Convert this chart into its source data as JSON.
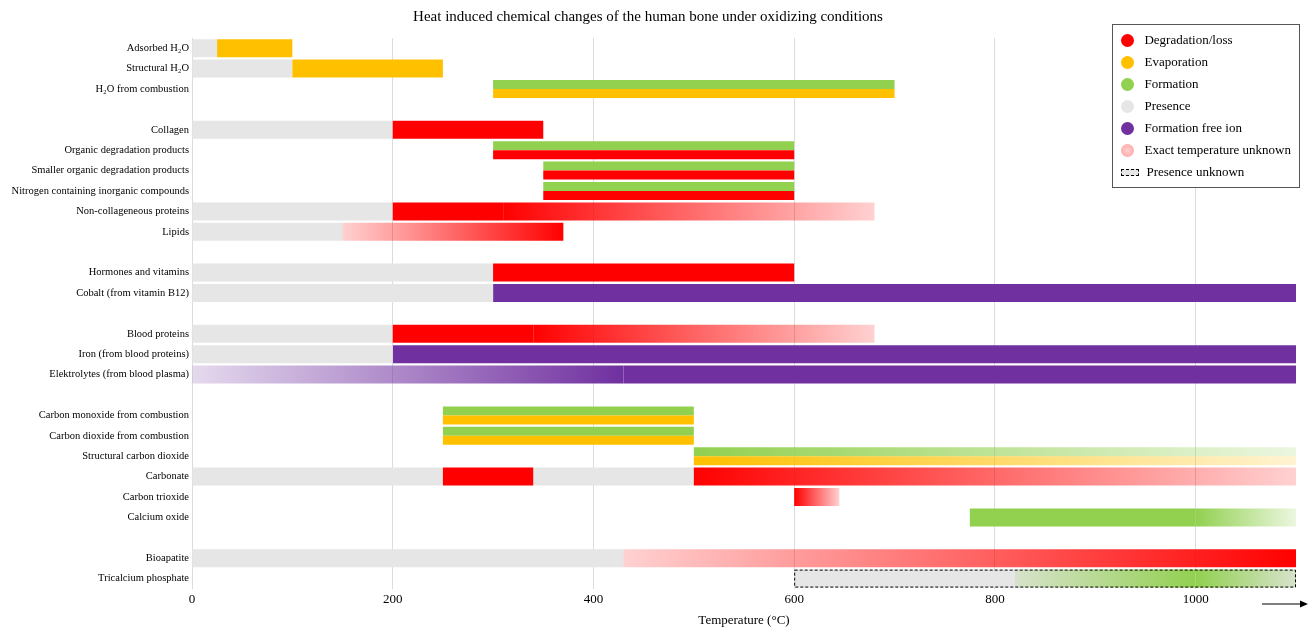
{
  "chart_data": {
    "type": "bar",
    "orientation": "horizontal",
    "title": "Heat induced chemical changes of the human bone under oxidizing conditions",
    "xlabel": "Temperature (°C)",
    "categories": [
      "Adsorbed H₂O",
      "Structural H₂O",
      "H₂O from combustion",
      null,
      "Collagen",
      "Organic degradation products",
      "Smaller organic degradation products",
      "Nitrogen containing inorganic compounds",
      "Non-collageneous proteins",
      "Lipids",
      null,
      "Hormones and vitamins",
      "Cobalt (from vitamin B12)",
      null,
      "Blood proteins",
      "Iron (from blood proteins)",
      "Elektrolytes (from blood plasma)",
      null,
      "Carbon monoxide from combustion",
      "Carbon dioxide from combustion",
      "Structural carbon dioxide",
      "Carbonate",
      "Carbon trioxide",
      "Calcium oxide",
      null,
      "Bioapatite",
      "Tricalcium phosphate"
    ],
    "xlim": [
      0,
      1100
    ],
    "xticks": [
      0,
      200,
      400,
      600,
      800,
      1000
    ],
    "grid": "x",
    "legend": "top right",
    "series": [
      {
        "name": "Degradation/loss",
        "color": "#ff0000",
        "values": [
          null,
          null,
          null,
          null,
          150,
          300,
          250,
          250,
          110,
          null,
          null,
          300,
          null,
          null,
          140,
          null,
          null,
          null,
          null,
          null,
          null,
          90,
          null,
          null,
          null,
          null,
          null
        ],
        "base": [
          null,
          null,
          null,
          null,
          200,
          300,
          350,
          350,
          200,
          null,
          null,
          300,
          null,
          null,
          200,
          null,
          null,
          null,
          null,
          null,
          null,
          250,
          null,
          null,
          null,
          null,
          null
        ]
      },
      {
        "name": "Evaporation",
        "color": "#ffc000",
        "values": [
          75,
          150,
          400,
          null,
          null,
          null,
          null,
          null,
          null,
          null,
          null,
          null,
          null,
          null,
          null,
          null,
          null,
          null,
          250,
          250,
          null,
          null,
          null,
          null,
          null,
          null,
          null
        ],
        "base": [
          25,
          100,
          300,
          null,
          null,
          null,
          null,
          null,
          null,
          null,
          null,
          null,
          null,
          null,
          null,
          null,
          null,
          null,
          250,
          250,
          null,
          null,
          null,
          null,
          null,
          null,
          null
        ]
      },
      {
        "name": "Formation",
        "color": "#92d050",
        "values": [
          null,
          null,
          400,
          null,
          null,
          300,
          250,
          250,
          null,
          null,
          null,
          null,
          null,
          null,
          null,
          null,
          null,
          null,
          250,
          250,
          null,
          null,
          null,
          225,
          null,
          null,
          null
        ],
        "base": [
          null,
          null,
          300,
          null,
          null,
          300,
          350,
          350,
          null,
          null,
          null,
          null,
          null,
          null,
          null,
          null,
          null,
          null,
          250,
          250,
          null,
          null,
          null,
          775,
          null,
          null,
          null
        ]
      },
      {
        "name": "Presence",
        "color": "#e6e6e6",
        "values": [
          25,
          100,
          null,
          null,
          200,
          null,
          null,
          null,
          200,
          150,
          null,
          300,
          300,
          null,
          200,
          200,
          null,
          null,
          null,
          null,
          null,
          250,
          null,
          null,
          null,
          430,
          null
        ],
        "base": [
          0,
          0,
          null,
          null,
          0,
          null,
          null,
          null,
          0,
          0,
          null,
          0,
          0,
          null,
          0,
          0,
          null,
          null,
          null,
          null,
          null,
          0,
          null,
          null,
          null,
          0,
          null
        ]
      },
      {
        "name": "Formation free ion",
        "color": "#7030a0",
        "values": [
          null,
          null,
          null,
          null,
          null,
          null,
          null,
          null,
          null,
          null,
          null,
          null,
          800,
          null,
          null,
          900,
          670,
          null,
          null,
          null,
          null,
          null,
          null,
          null,
          null,
          null,
          null
        ],
        "base": [
          null,
          null,
          null,
          null,
          null,
          null,
          null,
          null,
          null,
          null,
          null,
          null,
          300,
          null,
          null,
          200,
          430,
          null,
          null,
          null,
          null,
          null,
          null,
          null,
          null,
          null,
          null
        ]
      },
      {
        "color": "#e6e6e6",
        "values": [
          null,
          null,
          null,
          null,
          null,
          null,
          null,
          null,
          null,
          null,
          null,
          null,
          null,
          null,
          null,
          null,
          null,
          null,
          null,
          null,
          null,
          160,
          null,
          null,
          null,
          null,
          null
        ],
        "base": [
          null,
          null,
          null,
          null,
          null,
          null,
          null,
          null,
          null,
          null,
          null,
          null,
          null,
          null,
          null,
          null,
          null,
          null,
          null,
          null,
          null,
          340,
          null,
          null,
          null,
          null,
          null
        ]
      },
      {
        "color": "#ffc000",
        "values": [
          null,
          null,
          null,
          null,
          null,
          null,
          null,
          null,
          null,
          null,
          null,
          null,
          null,
          null,
          null,
          null,
          null,
          null,
          null,
          null,
          600,
          null,
          null,
          null,
          null,
          null,
          100
        ],
        "base": [
          null,
          null,
          null,
          null,
          null,
          null,
          null,
          null,
          null,
          null,
          null,
          null,
          null,
          null,
          null,
          null,
          null,
          null,
          null,
          null,
          500,
          null,
          null,
          null,
          null,
          null,
          1000
        ],
        "colors": [
          null,
          null,
          null,
          null,
          null,
          null,
          null,
          null,
          null,
          null,
          null,
          null,
          null,
          null,
          null,
          null,
          null,
          null,
          null,
          null,
          "#ffc000",
          null,
          null,
          null,
          null,
          null,
          "#92d050"
        ]
      },
      {
        "name": "Exact temperature unknown",
        "color": "#ff9f9f",
        "values": [
          null,
          null,
          null,
          null,
          null,
          null,
          null,
          null,
          370,
          -220,
          null,
          null,
          null,
          null,
          340,
          null,
          -430,
          null,
          null,
          null,
          600,
          600,
          45,
          100,
          null,
          -670,
          -180
        ],
        "base": [
          null,
          null,
          null,
          null,
          null,
          null,
          null,
          null,
          310,
          370,
          null,
          null,
          null,
          null,
          340,
          null,
          430,
          null,
          null,
          null,
          500,
          500,
          600,
          1000,
          null,
          1100,
          1000
        ],
        "colors": [
          null,
          null,
          null,
          null,
          null,
          null,
          null,
          null,
          "#ff0000",
          "#ff0000",
          null,
          null,
          null,
          null,
          "#ff0000",
          null,
          "#7030a0",
          null,
          null,
          null,
          "#92d050",
          "#ff0000",
          "#ff0000",
          "#92d050",
          null,
          "#ff0000",
          "#92d050"
        ]
      },
      {
        "name": "Presence unknown",
        "color": "#e6e6e6",
        "line_style": "dashed",
        "values": [
          null,
          null,
          null,
          null,
          null,
          null,
          null,
          null,
          null,
          null,
          null,
          null,
          null,
          null,
          null,
          null,
          null,
          null,
          null,
          null,
          null,
          null,
          null,
          null,
          null,
          null,
          500
        ],
        "base": [
          null,
          null,
          null,
          null,
          null,
          null,
          null,
          null,
          null,
          null,
          null,
          null,
          null,
          null,
          null,
          null,
          null,
          null,
          null,
          null,
          null,
          null,
          null,
          null,
          null,
          null,
          600
        ]
      }
    ]
  }
}
